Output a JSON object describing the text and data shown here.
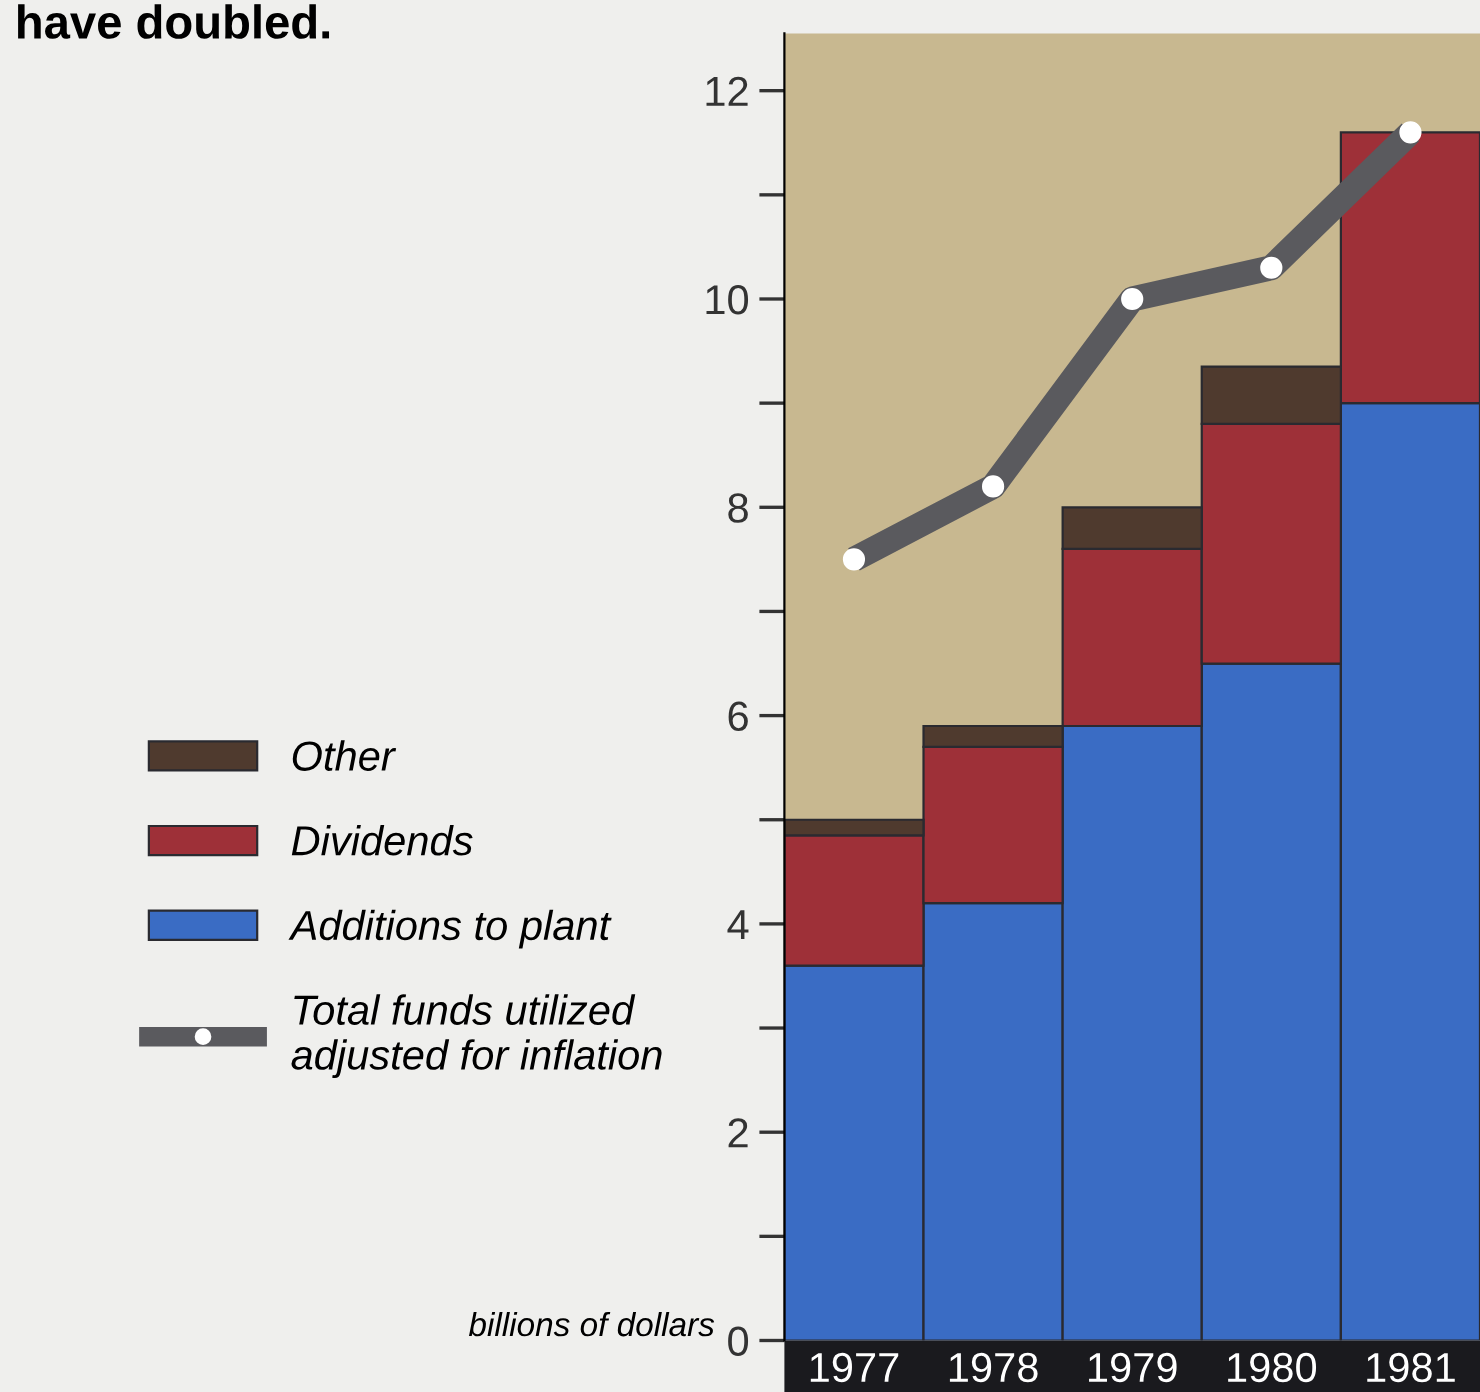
{
  "chart_data": {
    "type": "bar",
    "title": "have doubled.",
    "ylabel": "billions of dollars",
    "categories": [
      "1977",
      "1978",
      "1979",
      "1980",
      "1981"
    ],
    "stacked": true,
    "series": [
      {
        "name": "Additions to plant",
        "color": "#3a6cc4",
        "values": [
          3.6,
          4.2,
          5.9,
          6.5,
          9.0
        ]
      },
      {
        "name": "Dividends",
        "color": "#9e3038",
        "values": [
          1.25,
          1.5,
          1.7,
          2.3,
          2.6
        ]
      },
      {
        "name": "Other",
        "color": "#4f3a2e",
        "values": [
          0.15,
          0.2,
          0.4,
          0.55,
          null
        ]
      },
      {
        "name": "Total funds utilized adjusted for inflation",
        "type": "line",
        "color": "#5a5a5e",
        "marker": "circle",
        "values": [
          7.5,
          8.2,
          10.0,
          10.3,
          11.6
        ]
      }
    ],
    "ylim": [
      0,
      12.55
    ],
    "yticks": [
      0,
      {
        "value": 1,
        "label": null
      },
      2,
      {
        "value": 3,
        "label": null
      },
      4,
      {
        "value": 5,
        "label": null
      },
      6,
      {
        "value": 7,
        "label": null
      },
      8,
      {
        "value": 9,
        "label": null
      },
      10,
      {
        "value": 11,
        "label": null
      },
      12
    ],
    "bands": [
      {
        "axis": "y",
        "from": 0,
        "to": 12.55,
        "color": "#c8b890"
      }
    ],
    "grid": false,
    "legend": "left"
  }
}
